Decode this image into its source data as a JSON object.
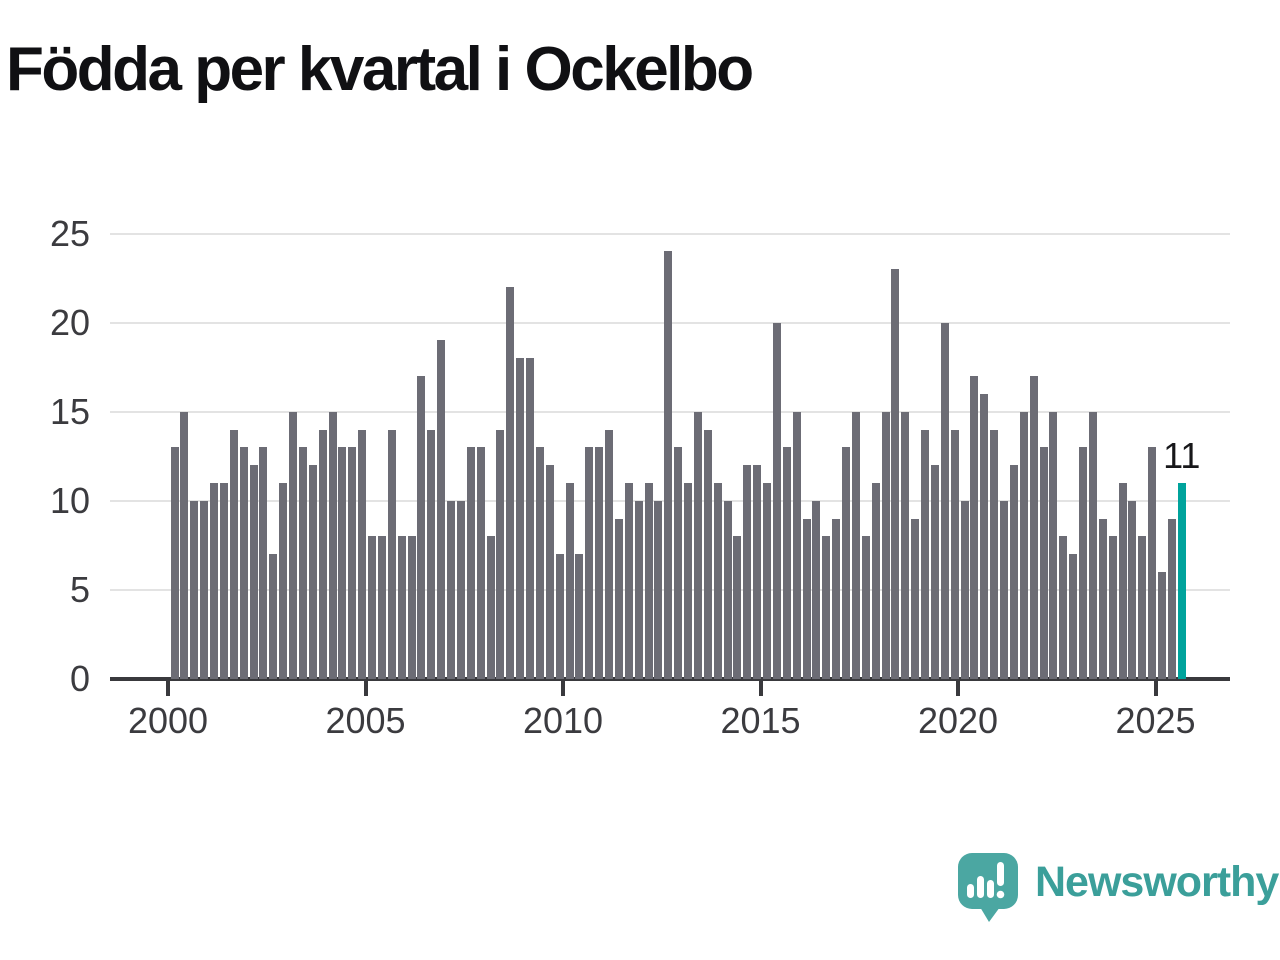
{
  "title": "Födda per kvartal i Ockelbo",
  "chart_data": {
    "type": "bar",
    "title": "Födda per kvartal i Ockelbo",
    "frequency": "quarterly",
    "first_period": "2000 Q1",
    "last_period": "2025 Q3",
    "values_by_year": {
      "2000": [
        13,
        15,
        10,
        10
      ],
      "2001": [
        11,
        11,
        14,
        13
      ],
      "2002": [
        12,
        13,
        7,
        11
      ],
      "2003": [
        15,
        13,
        12,
        14
      ],
      "2004": [
        15,
        13,
        13,
        14
      ],
      "2005": [
        8,
        8,
        14,
        8
      ],
      "2006": [
        8,
        17,
        14,
        19
      ],
      "2007": [
        10,
        10,
        13,
        13
      ],
      "2008": [
        8,
        14,
        22,
        18
      ],
      "2009": [
        18,
        13,
        12,
        7
      ],
      "2010": [
        11,
        7,
        13,
        13
      ],
      "2011": [
        14,
        9,
        11,
        10
      ],
      "2012": [
        11,
        10,
        24,
        13
      ],
      "2013": [
        11,
        15,
        14,
        11
      ],
      "2014": [
        10,
        8,
        12,
        12
      ],
      "2015": [
        11,
        20,
        13,
        15
      ],
      "2016": [
        9,
        10,
        8,
        9
      ],
      "2017": [
        13,
        15,
        8,
        11
      ],
      "2018": [
        15,
        23,
        15,
        9
      ],
      "2019": [
        14,
        12,
        20,
        14
      ],
      "2020": [
        10,
        17,
        16,
        14
      ],
      "2021": [
        10,
        12,
        15,
        17
      ],
      "2022": [
        13,
        15,
        8,
        7
      ],
      "2023": [
        13,
        15,
        9,
        8
      ],
      "2024": [
        11,
        10,
        8,
        13
      ],
      "2025": [
        6,
        9,
        11
      ]
    },
    "ylim": [
      0,
      25
    ],
    "y_tick_labels": [
      "0",
      "5",
      "10",
      "15",
      "20",
      "25"
    ],
    "x_tick_labels": [
      "2000",
      "2005",
      "2010",
      "2015",
      "2020",
      "2025"
    ],
    "grid": "horizontal",
    "legend": "none",
    "bar_color": "#6c6c75",
    "highlight_last_bar": true,
    "highlight_color": "#00a39c",
    "last_value_label": "11"
  },
  "branding": {
    "logo_text": "Newsworthy",
    "logo_text_color": "#3b9f9a",
    "logo_bubble_color": "#4ba7a2"
  }
}
